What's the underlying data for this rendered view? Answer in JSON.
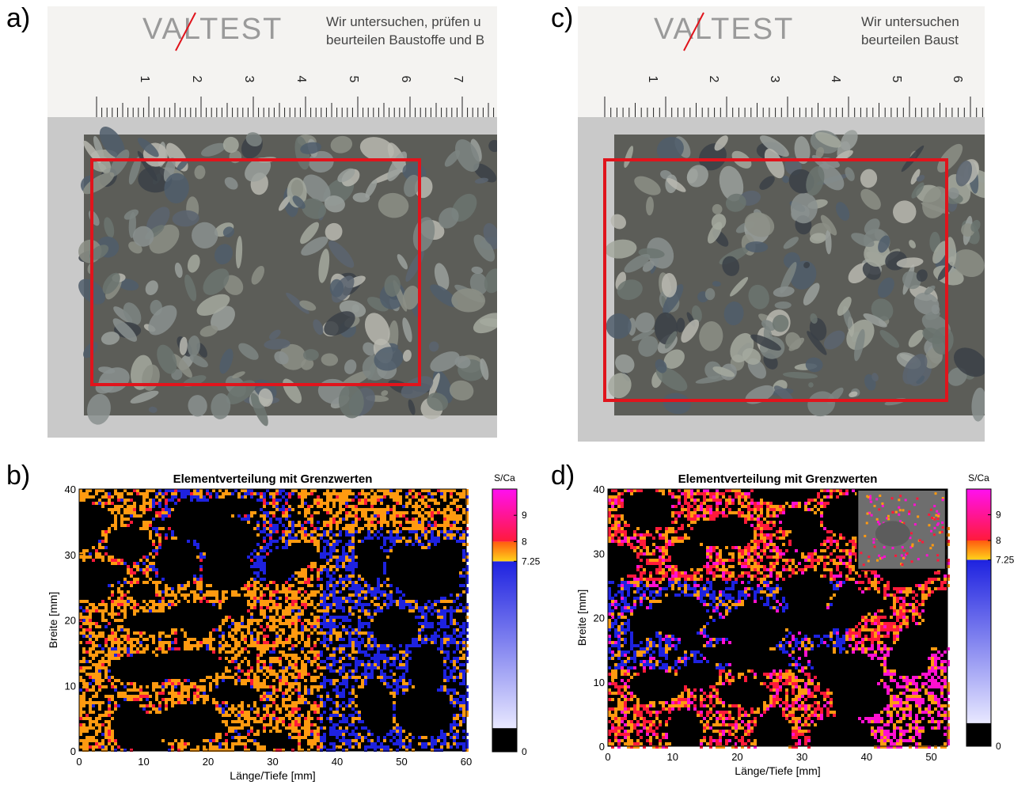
{
  "panels": {
    "a": "a)",
    "b": "b)",
    "c": "c)",
    "d": "d)"
  },
  "ruler": {
    "brand": "VALTEST",
    "text_a": "Wir untersuchen, prüfen u\nbeurteilen Baustoffe und B",
    "text_c": "Wir untersuchen\nbeurteilen Baust",
    "numbers_a": [
      "1",
      "2",
      "3",
      "4",
      "5",
      "6",
      "7"
    ],
    "numbers_c": [
      "1",
      "2",
      "3",
      "4",
      "5",
      "6"
    ]
  },
  "colors": {
    "frame": "#e0141c",
    "concrete": "#5c5d58",
    "blue": "#1e22e0",
    "orange": "#ff9a10",
    "red": "#ff1a3a",
    "magenta": "#ff10d0"
  },
  "chart_data": [
    {
      "type": "heatmap",
      "panel": "b)",
      "title": "Elementverteilung mit Grenzwerten",
      "xlabel": "Länge/Tiefe [mm]",
      "ylabel": "Breite [mm]",
      "xlim": [
        0,
        60
      ],
      "ylim": [
        0,
        40
      ],
      "xticks": [
        0,
        10,
        20,
        30,
        40,
        50,
        60
      ],
      "yticks": [
        0,
        10,
        20,
        30,
        40
      ],
      "colorbar": {
        "label": "S/Ca",
        "range": [
          0,
          10
        ],
        "ticks": [
          0,
          7.25,
          8,
          9
        ],
        "thresholds": [
          7.25,
          8
        ]
      },
      "inset": false
    },
    {
      "type": "heatmap",
      "panel": "d)",
      "title": "Elementverteilung mit Grenzwerten",
      "xlabel": "Länge/Tiefe [mm]",
      "ylabel": "Breite [mm]",
      "xlim": [
        0,
        52.5
      ],
      "ylim": [
        0,
        40
      ],
      "xticks": [
        0,
        10,
        20,
        30,
        40,
        50
      ],
      "yticks": [
        0,
        10,
        20,
        30,
        40
      ],
      "colorbar": {
        "label": "S/Ca",
        "range": [
          0,
          10
        ],
        "ticks": [
          0,
          7.25,
          8,
          9
        ],
        "thresholds": [
          7.25,
          8
        ]
      },
      "inset": true
    }
  ]
}
